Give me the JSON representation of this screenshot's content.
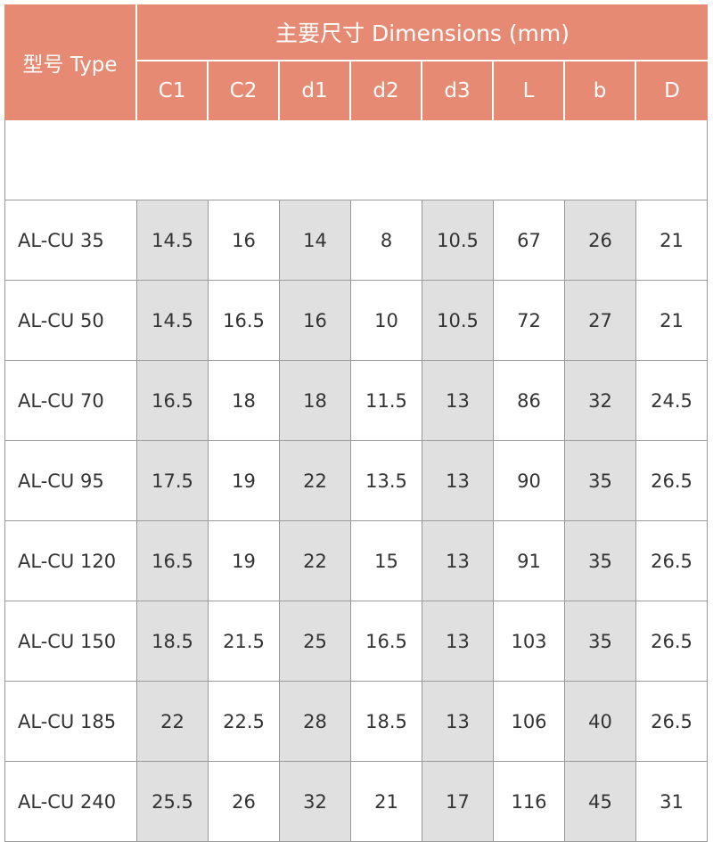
{
  "header": {
    "type_label": "型号 Type",
    "group_label": "主要尺寸  Dimensions (mm)",
    "columns": [
      "C1",
      "C2",
      "d1",
      "d2",
      "d3",
      "L",
      "b",
      "D"
    ]
  },
  "colors": {
    "header_bg": "#e68a73",
    "shaded_column": "#e0e0e0",
    "border": "#9a9a9a"
  },
  "rows": [
    {
      "type": "AL-CU 35",
      "values": [
        "14.5",
        "16",
        "14",
        "8",
        "10.5",
        "67",
        "26",
        "21"
      ]
    },
    {
      "type": "AL-CU 50",
      "values": [
        "14.5",
        "16.5",
        "16",
        "10",
        "10.5",
        "72",
        "27",
        "21"
      ]
    },
    {
      "type": "AL-CU 70",
      "values": [
        "16.5",
        "18",
        "18",
        "11.5",
        "13",
        "86",
        "32",
        "24.5"
      ]
    },
    {
      "type": "AL-CU 95",
      "values": [
        "17.5",
        "19",
        "22",
        "13.5",
        "13",
        "90",
        "35",
        "26.5"
      ]
    },
    {
      "type": "AL-CU 120",
      "values": [
        "16.5",
        "19",
        "22",
        "15",
        "13",
        "91",
        "35",
        "26.5"
      ]
    },
    {
      "type": "AL-CU 150",
      "values": [
        "18.5",
        "21.5",
        "25",
        "16.5",
        "13",
        "103",
        "35",
        "26.5"
      ]
    },
    {
      "type": "AL-CU 185",
      "values": [
        "22",
        "22.5",
        "28",
        "18.5",
        "13",
        "106",
        "40",
        "26.5"
      ]
    },
    {
      "type": "AL-CU 240",
      "values": [
        "25.5",
        "26",
        "32",
        "21",
        "17",
        "116",
        "45",
        "31"
      ]
    }
  ]
}
